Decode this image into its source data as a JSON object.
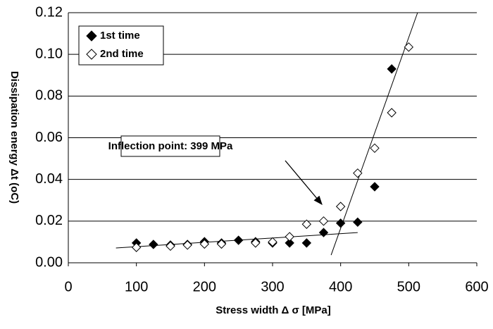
{
  "chart_data": {
    "type": "scatter",
    "x_label": "Stress width Δ σ [MPa]",
    "y_label": "Dissipation energy Δt (oC)",
    "xlim": [
      0,
      600
    ],
    "xticks": [
      0,
      100,
      200,
      300,
      400,
      500,
      600
    ],
    "ylim": [
      0,
      0.12
    ],
    "yticks": [
      {
        "value": 0,
        "label": "0.00"
      },
      {
        "value": 0.02,
        "label": "0.02"
      },
      {
        "value": 0.04,
        "label": "0.04"
      },
      {
        "value": 0.06,
        "label": "0.06"
      },
      {
        "value": 0.08,
        "label": "0.08"
      },
      {
        "value": 0.1,
        "label": "0.10"
      },
      {
        "value": 0.12,
        "label": "0.12"
      }
    ],
    "grid": true,
    "legend": "upper left",
    "series": [
      {
        "name": "1st time",
        "color": "#000000",
        "filled": true,
        "x": [
          100,
          125,
          150,
          175,
          200,
          225,
          250,
          275,
          300,
          325,
          350,
          375,
          400,
          425,
          450,
          475
        ],
        "values": [
          0.0095,
          0.0088,
          0.0085,
          0.0088,
          0.0101,
          0.0095,
          0.0108,
          0.0101,
          0.0095,
          0.0095,
          0.0095,
          0.0145,
          0.019,
          0.0195,
          0.0365,
          0.093
        ]
      },
      {
        "name": "2nd time",
        "color": "#000000",
        "filled": false,
        "x": [
          100,
          150,
          175,
          200,
          225,
          275,
          300,
          325,
          350,
          375,
          400,
          425,
          450,
          475,
          500
        ],
        "values": [
          0.0074,
          0.008,
          0.0085,
          0.009,
          0.009,
          0.0095,
          0.01,
          0.0125,
          0.0185,
          0.02,
          0.027,
          0.043,
          0.055,
          0.072,
          0.1035
        ]
      }
    ],
    "trendlines": [
      {
        "x": [
          70,
          425
        ],
        "values": [
          0.0071,
          0.0145
        ]
      },
      {
        "x": [
          386,
          513
        ],
        "values": [
          0.0037,
          0.12
        ]
      }
    ],
    "annotation": "Inflection point: 399 MPa"
  }
}
